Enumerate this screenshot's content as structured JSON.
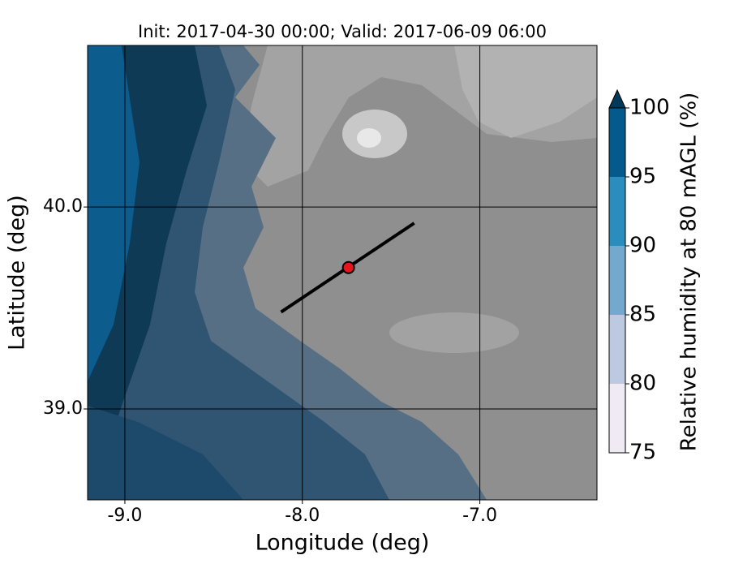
{
  "chart_data": {
    "type": "contour",
    "title": "Init: 2017-04-30 00:00; Valid: 2017-06-09 06:00",
    "x_label": "Longitude (deg)",
    "y_label": "Latitude (deg)",
    "xlim": [
      -9.21,
      -6.34
    ],
    "ylim": [
      38.55,
      40.8
    ],
    "xticks": [
      {
        "value": -9,
        "label": "-9.0"
      },
      {
        "value": -8,
        "label": "-8.0"
      },
      {
        "value": -7,
        "label": "-7.0"
      }
    ],
    "yticks": [
      {
        "value": 39,
        "label": "39.0"
      },
      {
        "value": 40,
        "label": "40.0"
      }
    ],
    "grid": true,
    "colorbar": {
      "label": "Relative humidity at 80 mAGL (%)",
      "levels": [
        75,
        80,
        85,
        90,
        95,
        100
      ],
      "colors": [
        "#efeaf3",
        "#bdc8e1",
        "#74a9cf",
        "#2b8cbe",
        "#045a8d"
      ],
      "extend": "max",
      "extend_color": "#023858",
      "ticks": [
        75,
        80,
        85,
        90,
        95,
        100
      ]
    },
    "point": {
      "x": -7.74,
      "y": 39.7,
      "color": "#e8141c"
    },
    "transect": {
      "x": [
        -8.12,
        -7.37
      ],
      "y": [
        39.48,
        39.92
      ],
      "color": "#000000"
    }
  }
}
